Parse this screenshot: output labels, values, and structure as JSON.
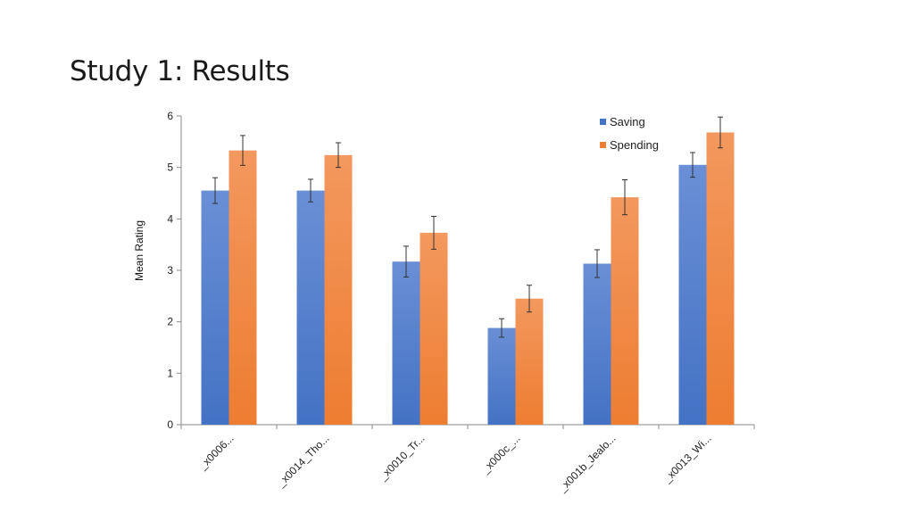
{
  "slide": {
    "title": "Study 1: Results"
  },
  "colors": {
    "saving": "#4472c4",
    "spending": "#ed7d31",
    "axis": "#888888",
    "error_bar": "#333333"
  },
  "chart_data": {
    "type": "bar",
    "title": "",
    "xlabel": "",
    "ylabel": "Mean Rating",
    "ylim": [
      0,
      6
    ],
    "yticks": [
      0,
      1,
      2,
      3,
      4,
      5,
      6
    ],
    "grid": false,
    "legend_position": "top-right",
    "categories": [
      "_x0006...",
      "_x0014_Tho...",
      "_x0010_Tr...",
      "_x000c_...",
      "_x001b_Jealo...",
      "_x0013_Wi..."
    ],
    "series": [
      {
        "name": "Saving",
        "values": [
          4.55,
          4.55,
          3.17,
          1.88,
          3.13,
          5.05
        ],
        "error": [
          0.25,
          0.22,
          0.3,
          0.18,
          0.27,
          0.24
        ]
      },
      {
        "name": "Spending",
        "values": [
          5.33,
          5.24,
          3.73,
          2.45,
          4.42,
          5.68
        ],
        "error": [
          0.29,
          0.24,
          0.32,
          0.26,
          0.34,
          0.3
        ]
      }
    ]
  }
}
